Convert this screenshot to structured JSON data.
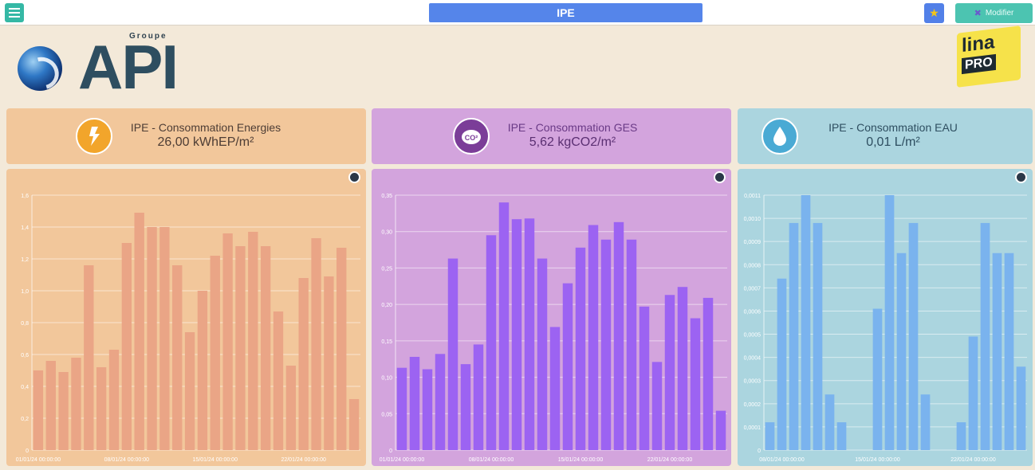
{
  "header": {
    "title": "IPE",
    "modify_label": "Modifier"
  },
  "logos": {
    "groupe": "Groupe",
    "api": "API",
    "lina": "lina",
    "pro": "PRO"
  },
  "icons": {
    "menu": "hamburger-menu-icon",
    "favorite": "star-icon",
    "modify": "wrench-icon",
    "zoom": "magnifier-icon"
  },
  "kpis": [
    {
      "label": "IPE - Consommation Energies",
      "value": "26,00 kWhEP/m²",
      "icon": "energy-icon",
      "color": "#f2c79b"
    },
    {
      "label": "IPE - Consommation GES",
      "value": "5,62 kgCO2/m²",
      "icon": "co2-icon",
      "color": "#d3a4dd"
    },
    {
      "label": "IPE - Consommation EAU",
      "value": "0,01 L/m²",
      "icon": "water-drop-icon",
      "color": "#abd5df"
    }
  ],
  "chart_data": [
    {
      "type": "bar",
      "bar_color": "#eaa586",
      "panel_color": "#f2c79b",
      "ylim": [
        0,
        1.6
      ],
      "yticks": [
        "0",
        "0,2",
        "0,4",
        "0,6",
        "0,8",
        "1,0",
        "1,2",
        "1,4",
        "1,6"
      ],
      "xticks": [
        {
          "index": 0,
          "label": "01/01/24 00:00:00"
        },
        {
          "index": 7,
          "label": "08/01/24 00:00:00"
        },
        {
          "index": 14,
          "label": "15/01/24 00:00:00"
        },
        {
          "index": 21,
          "label": "22/01/24 00:00:00"
        }
      ],
      "values": [
        0.5,
        0.56,
        0.49,
        0.58,
        1.16,
        0.52,
        0.63,
        1.3,
        1.49,
        1.4,
        1.4,
        1.16,
        0.74,
        1.0,
        1.22,
        1.36,
        1.28,
        1.37,
        1.28,
        0.87,
        0.53,
        1.08,
        1.33,
        1.09,
        1.27,
        0.32
      ]
    },
    {
      "type": "bar",
      "bar_color": "#9c63f2",
      "panel_color": "#d3a4dd",
      "ylim": [
        0,
        0.35
      ],
      "yticks": [
        "0",
        "0,05",
        "0,10",
        "0,15",
        "0,20",
        "0,25",
        "0,30",
        "0,35"
      ],
      "xticks": [
        {
          "index": 0,
          "label": "01/01/24 00:00:00"
        },
        {
          "index": 7,
          "label": "08/01/24 00:00:00"
        },
        {
          "index": 14,
          "label": "15/01/24 00:00:00"
        },
        {
          "index": 21,
          "label": "22/01/24 00:00:00"
        }
      ],
      "values": [
        0.113,
        0.128,
        0.111,
        0.132,
        0.263,
        0.118,
        0.145,
        0.295,
        0.34,
        0.317,
        0.318,
        0.263,
        0.169,
        0.229,
        0.278,
        0.309,
        0.289,
        0.313,
        0.289,
        0.197,
        0.121,
        0.213,
        0.224,
        0.181,
        0.209,
        0.054
      ]
    },
    {
      "type": "bar",
      "bar_color": "#7ab3ee",
      "panel_color": "#abd5df",
      "ylim": [
        0,
        0.0011
      ],
      "yticks": [
        "0",
        "0,0001",
        "0,0002",
        "0,0003",
        "0,0004",
        "0,0005",
        "0,0006",
        "0,0007",
        "0,0008",
        "0,0009",
        "0,0010",
        "0,0011"
      ],
      "xticks": [
        {
          "index": 1,
          "label": "08/01/24 00:00:00"
        },
        {
          "index": 9,
          "label": "15/01/24 00:00:00"
        },
        {
          "index": 17,
          "label": "22/01/24 00:00:00"
        }
      ],
      "values": [
        0.00012,
        0.00074,
        0.00098,
        0.0011,
        0.00098,
        0.00024,
        0.00012,
        0,
        0,
        0.00061,
        0.0011,
        0.00085,
        0.00098,
        0.00024,
        0,
        0,
        0.00012,
        0.00049,
        0.00098,
        0.00085,
        0.00085,
        0.00036
      ]
    }
  ]
}
